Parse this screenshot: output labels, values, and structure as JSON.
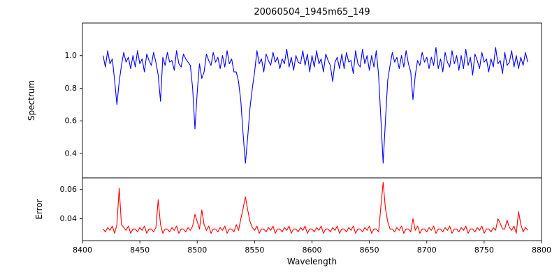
{
  "chart_data": [
    {
      "type": "line",
      "title": "20060504_1945m65_149",
      "ylabel": "Spectrum",
      "color": "#0000ff",
      "xlim": [
        8400,
        8800
      ],
      "ylim": [
        0.25,
        1.2
      ],
      "yticks": [
        "0.4",
        "0.6",
        "0.8",
        "1.0"
      ],
      "x_start": 8418,
      "x_step": 2,
      "values": [
        1.0,
        0.93,
        1.03,
        0.95,
        0.98,
        0.85,
        0.7,
        0.84,
        0.94,
        1.02,
        0.96,
        0.99,
        0.92,
        1.0,
        0.93,
        1.03,
        0.95,
        0.98,
        0.9,
        1.01,
        0.97,
        0.94,
        1.02,
        0.96,
        0.88,
        0.72,
        0.99,
        0.94,
        1.02,
        0.96,
        0.97,
        0.91,
        1.03,
        0.95,
        0.93,
        1.01,
        0.98,
        0.96,
        0.94,
        0.8,
        0.55,
        0.78,
        0.95,
        0.86,
        0.9,
        1.01,
        0.97,
        0.94,
        1.02,
        0.96,
        0.99,
        0.92,
        1.0,
        0.93,
        1.03,
        0.95,
        0.98,
        0.9,
        0.9,
        0.84,
        0.72,
        0.52,
        0.34,
        0.5,
        0.68,
        0.8,
        0.9,
        1.03,
        0.95,
        0.98,
        0.9,
        1.01,
        0.97,
        0.94,
        1.02,
        0.96,
        0.99,
        0.92,
        0.98,
        0.95,
        1.04,
        0.93,
        0.99,
        0.91,
        1.0,
        0.96,
        0.95,
        1.03,
        0.94,
        1.01,
        0.9,
        1.0,
        0.93,
        1.03,
        0.95,
        0.98,
        0.9,
        1.01,
        0.97,
        0.94,
        0.84,
        0.96,
        0.99,
        0.92,
        1.01,
        0.92,
        1.02,
        0.96,
        0.97,
        0.89,
        1.03,
        0.95,
        0.93,
        1.04,
        0.95,
        1.0,
        0.91,
        1.0,
        0.93,
        1.03,
        0.88,
        0.62,
        0.34,
        0.6,
        0.85,
        0.94,
        1.02,
        0.96,
        0.99,
        0.92,
        1.0,
        0.93,
        1.03,
        0.95,
        0.9,
        0.73,
        0.88,
        0.97,
        0.94,
        1.02,
        0.96,
        0.99,
        0.92,
        0.99,
        0.94,
        1.05,
        0.92,
        0.98,
        0.9,
        1.02,
        0.96,
        0.93,
        1.03,
        0.95,
        1.0,
        0.91,
        1.0,
        0.92,
        1.04,
        0.94,
        0.99,
        0.88,
        1.01,
        0.97,
        0.92,
        1.02,
        0.96,
        0.98,
        0.9,
        0.98,
        0.93,
        1.05,
        0.95,
        0.97,
        0.89,
        1.02,
        0.94,
        0.96,
        1.03,
        0.93,
        1.0,
        0.92,
        0.99,
        0.94,
        1.02,
        0.96
      ]
    },
    {
      "type": "line",
      "ylabel": "Error",
      "xlabel": "Wavelength",
      "color": "#ff0000",
      "xlim": [
        8400,
        8800
      ],
      "ylim": [
        0.025,
        0.068
      ],
      "yticks": [
        "0.04",
        "0.06"
      ],
      "xticks": [
        "8400",
        "8450",
        "8500",
        "8550",
        "8600",
        "8650",
        "8700",
        "8750",
        "8800"
      ],
      "x_start": 8418,
      "x_step": 2,
      "values": [
        0.033,
        0.031,
        0.034,
        0.032,
        0.035,
        0.03,
        0.036,
        0.061,
        0.036,
        0.034,
        0.032,
        0.035,
        0.03,
        0.033,
        0.033,
        0.031,
        0.034,
        0.032,
        0.035,
        0.03,
        0.033,
        0.033,
        0.031,
        0.034,
        0.053,
        0.036,
        0.03,
        0.033,
        0.033,
        0.031,
        0.034,
        0.032,
        0.035,
        0.03,
        0.033,
        0.033,
        0.031,
        0.034,
        0.032,
        0.035,
        0.043,
        0.038,
        0.033,
        0.046,
        0.036,
        0.032,
        0.035,
        0.03,
        0.033,
        0.033,
        0.031,
        0.034,
        0.032,
        0.035,
        0.03,
        0.033,
        0.033,
        0.031,
        0.036,
        0.032,
        0.04,
        0.047,
        0.055,
        0.046,
        0.038,
        0.034,
        0.032,
        0.035,
        0.03,
        0.033,
        0.033,
        0.031,
        0.034,
        0.032,
        0.035,
        0.03,
        0.033,
        0.033,
        0.031,
        0.034,
        0.032,
        0.035,
        0.03,
        0.033,
        0.033,
        0.031,
        0.034,
        0.032,
        0.035,
        0.03,
        0.033,
        0.033,
        0.031,
        0.034,
        0.032,
        0.035,
        0.03,
        0.033,
        0.033,
        0.031,
        0.034,
        0.032,
        0.035,
        0.03,
        0.033,
        0.033,
        0.031,
        0.034,
        0.032,
        0.035,
        0.03,
        0.033,
        0.033,
        0.031,
        0.034,
        0.032,
        0.035,
        0.03,
        0.033,
        0.033,
        0.031,
        0.048,
        0.065,
        0.047,
        0.038,
        0.033,
        0.033,
        0.031,
        0.034,
        0.032,
        0.035,
        0.03,
        0.033,
        0.033,
        0.031,
        0.04,
        0.032,
        0.035,
        0.03,
        0.033,
        0.033,
        0.031,
        0.034,
        0.032,
        0.035,
        0.03,
        0.033,
        0.033,
        0.031,
        0.034,
        0.032,
        0.035,
        0.03,
        0.033,
        0.033,
        0.031,
        0.034,
        0.032,
        0.035,
        0.03,
        0.033,
        0.033,
        0.031,
        0.034,
        0.032,
        0.035,
        0.03,
        0.033,
        0.033,
        0.031,
        0.034,
        0.032,
        0.04,
        0.037,
        0.033,
        0.033,
        0.039,
        0.034,
        0.032,
        0.035,
        0.03,
        0.045,
        0.036,
        0.031,
        0.034,
        0.032
      ]
    }
  ]
}
